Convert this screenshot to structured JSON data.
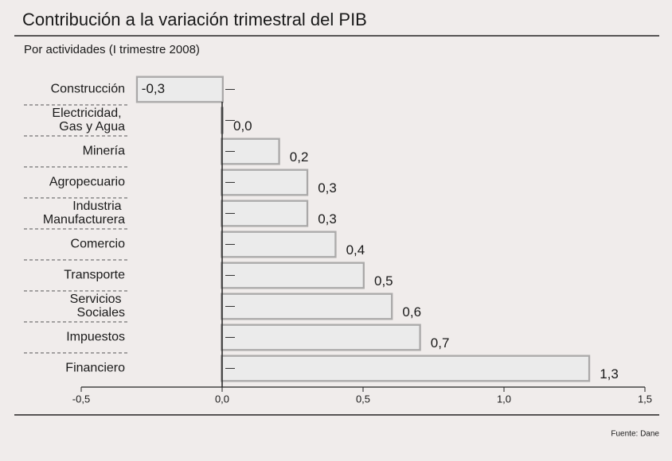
{
  "chart_data": {
    "type": "barh",
    "title": "Contribución a la variación trimestral del PIB",
    "subtitle": "Por actividades (I trimestre 2008)",
    "source": "Fuente: Dane",
    "categories": [
      "Construcción",
      "Electricidad,\nGas y Agua",
      "Minería",
      "Agropecuario",
      "Industria\nManufacturera",
      "Comercio",
      "Transporte",
      "Servicios\nSociales",
      "Impuestos",
      "Financiero"
    ],
    "values": [
      -0.3,
      0.0,
      0.2,
      0.3,
      0.3,
      0.4,
      0.5,
      0.6,
      0.7,
      1.3
    ],
    "value_labels": [
      "-0,3",
      "0,0",
      "0,2",
      "0,3",
      "0,3",
      "0,4",
      "0,5",
      "0,6",
      "0,7",
      "1,3"
    ],
    "color": "#ebebeb",
    "xlim": [
      -0.5,
      1.5
    ],
    "xticks": [
      {
        "value": -0.5,
        "label": "-0,5"
      },
      {
        "value": 0.0,
        "label": "0,0"
      },
      {
        "value": 0.5,
        "label": "0,5"
      },
      {
        "value": 1.0,
        "label": "1,0"
      },
      {
        "value": 1.5,
        "label": "1,5"
      }
    ]
  }
}
